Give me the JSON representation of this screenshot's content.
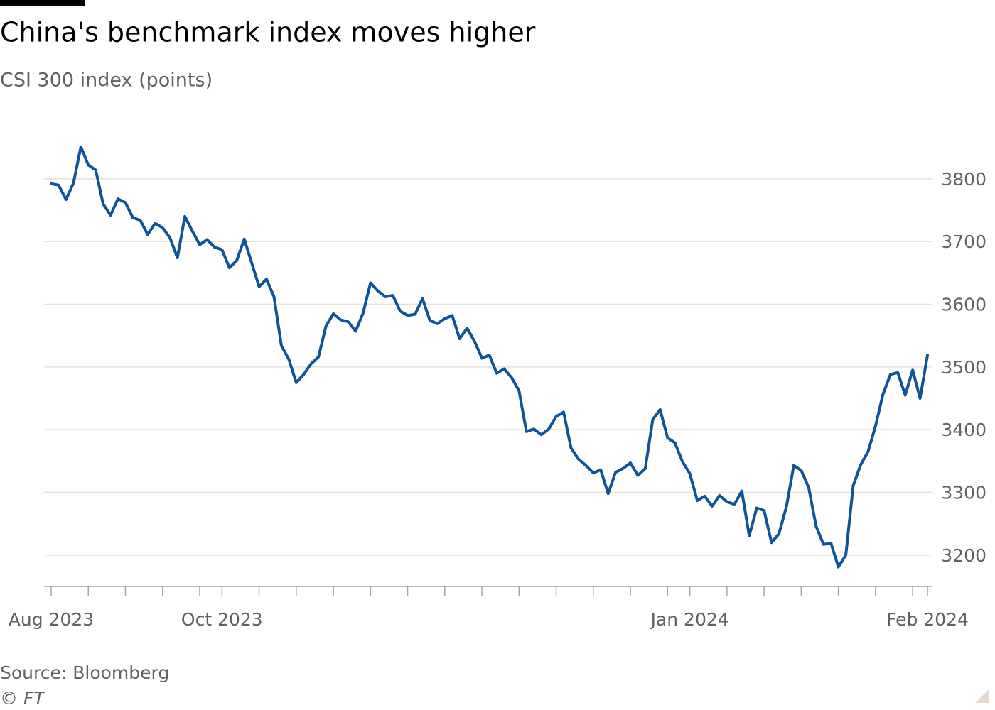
{
  "chart_data": {
    "type": "line",
    "title": "China's benchmark index moves higher",
    "subtitle": "CSI 300 index (points)",
    "source": "Source: Bloomberg",
    "copyright": "© FT",
    "color": "#0f5499",
    "grid": true,
    "ylim": [
      3150,
      3870
    ],
    "yticks": [
      3200,
      3300,
      3400,
      3500,
      3600,
      3700,
      3800
    ],
    "categories": [
      "Aug 2023",
      null,
      null,
      null,
      null,
      null,
      null,
      null,
      null,
      null,
      null,
      null,
      null,
      null,
      null,
      null,
      null,
      null,
      null,
      null,
      null,
      null,
      null,
      "Oct 2023",
      null,
      null,
      null,
      null,
      null,
      null,
      null,
      null,
      null,
      null,
      null,
      null,
      null,
      null,
      null,
      null,
      null,
      null,
      null,
      null,
      null,
      null,
      null,
      null,
      null,
      null,
      null,
      null,
      null,
      null,
      null,
      null,
      null,
      null,
      null,
      null,
      null,
      null,
      null,
      null,
      null,
      null,
      null,
      null,
      null,
      null,
      null,
      null,
      null,
      null,
      null,
      null,
      null,
      null,
      null,
      null,
      null,
      null,
      null,
      null,
      null,
      null,
      "Jan 2024",
      null,
      null,
      null,
      null,
      null,
      null,
      null,
      null,
      null,
      null,
      null,
      null,
      null,
      null,
      null,
      null,
      null,
      null,
      null,
      null,
      null,
      null,
      null,
      null,
      null,
      null,
      null,
      null,
      null,
      null,
      null,
      "Feb 2024"
    ],
    "values": [
      3792,
      3790,
      3767,
      3793,
      3851,
      3822,
      3814,
      3760,
      3742,
      3768,
      3762,
      3738,
      3734,
      3711,
      3729,
      3722,
      3706,
      3674,
      3740,
      3717,
      3695,
      3703,
      3691,
      3687,
      3658,
      3670,
      3704,
      3666,
      3628,
      3640,
      3612,
      3534,
      3512,
      3475,
      3488,
      3505,
      3516,
      3565,
      3585,
      3575,
      3572,
      3557,
      3586,
      3634,
      3621,
      3612,
      3614,
      3589,
      3582,
      3584,
      3609,
      3574,
      3569,
      3577,
      3582,
      3545,
      3562,
      3541,
      3514,
      3519,
      3490,
      3497,
      3483,
      3462,
      3397,
      3401,
      3392,
      3401,
      3421,
      3428,
      3371,
      3353,
      3343,
      3331,
      3336,
      3298,
      3332,
      3338,
      3347,
      3327,
      3338,
      3416,
      3432,
      3387,
      3379,
      3349,
      3330,
      3287,
      3294,
      3278,
      3295,
      3285,
      3281,
      3302,
      3231,
      3275,
      3271,
      3220,
      3234,
      3277,
      3343,
      3335,
      3308,
      3246,
      3217,
      3219,
      3181,
      3200,
      3311,
      3344,
      3365,
      3406,
      3456,
      3488,
      3491,
      3455,
      3495,
      3450,
      3519
    ]
  }
}
